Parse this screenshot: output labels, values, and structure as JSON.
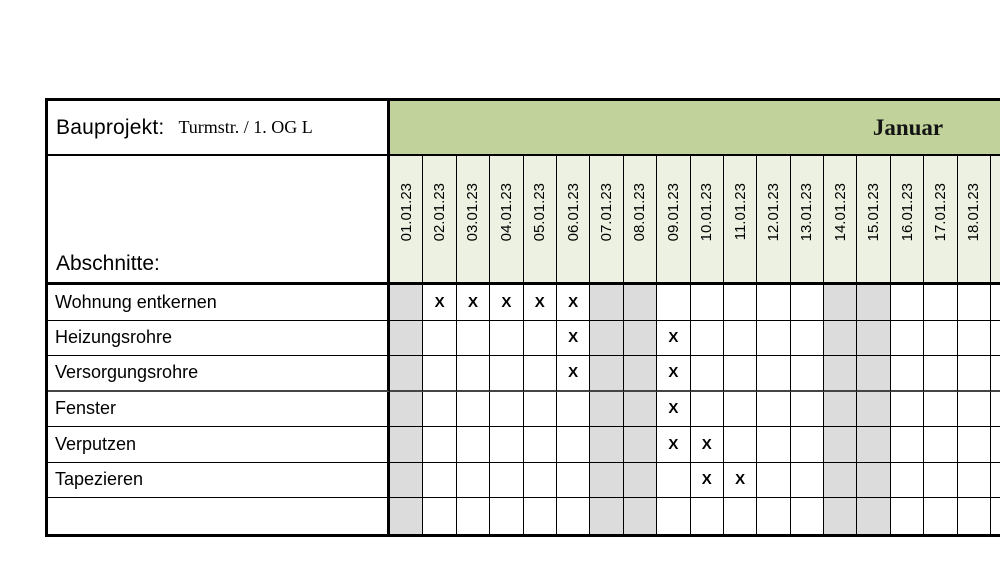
{
  "project": {
    "label": "Bauprojekt:",
    "name": "Turmstr. / 1. OG L"
  },
  "month_header": "Januar",
  "sections_label": "Abschnitte:",
  "calendar": {
    "dates": [
      "01.01.23",
      "02.01.23",
      "03.01.23",
      "04.01.23",
      "05.01.23",
      "06.01.23",
      "07.01.23",
      "08.01.23",
      "09.01.23",
      "10.01.23",
      "11.01.23",
      "12.01.23",
      "13.01.23",
      "14.01.23",
      "15.01.23",
      "16.01.23",
      "17.01.23",
      "18.01.23"
    ],
    "weekend_dates": [
      "01.01.23",
      "07.01.23",
      "08.01.23",
      "14.01.23",
      "15.01.23"
    ]
  },
  "mark_symbol": "X",
  "tasks": [
    {
      "label": "Wohnung entkernen",
      "marked_dates": [
        "02.01.23",
        "03.01.23",
        "04.01.23",
        "05.01.23",
        "06.01.23"
      ]
    },
    {
      "label": "Heizungsrohre",
      "marked_dates": [
        "06.01.23",
        "09.01.23"
      ]
    },
    {
      "label": "Versorgungsrohre",
      "marked_dates": [
        "06.01.23",
        "09.01.23"
      ]
    },
    {
      "label": "Fenster",
      "marked_dates": [
        "09.01.23"
      ]
    },
    {
      "label": "Verputzen",
      "marked_dates": [
        "09.01.23",
        "10.01.23"
      ]
    },
    {
      "label": "Tapezieren",
      "marked_dates": [
        "10.01.23",
        "11.01.23"
      ]
    },
    {
      "label": "",
      "marked_dates": []
    }
  ],
  "colors": {
    "month_band": "#c1d39a",
    "date_header_bg": "#edf1e1",
    "weekend_bg": "#dcdcdc",
    "border": "#000000"
  }
}
